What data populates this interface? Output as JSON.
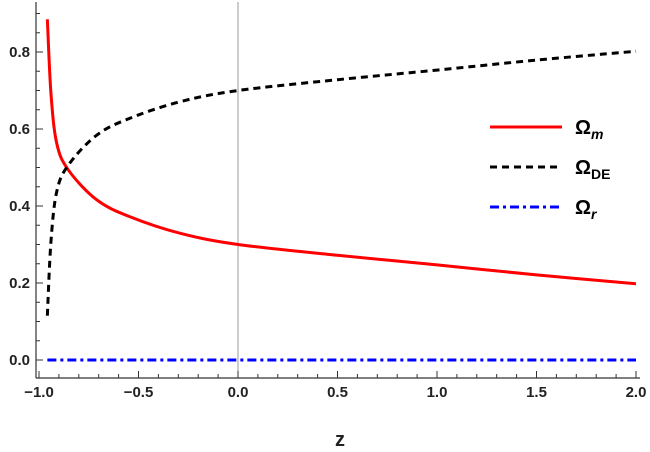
{
  "chart_data": {
    "type": "line",
    "title": "",
    "xlabel": "z",
    "ylabel": "",
    "xlim": [
      -1.0,
      2.0
    ],
    "ylim": [
      0.0,
      0.9
    ],
    "xticks": [
      "−1.0",
      "−0.5",
      "0.0",
      "0.5",
      "1.0",
      "1.5",
      "2.0"
    ],
    "xtick_values": [
      -1.0,
      -0.5,
      0.0,
      0.5,
      1.0,
      1.5,
      2.0
    ],
    "yticks": [
      "0.0",
      "0.2",
      "0.4",
      "0.6",
      "0.8"
    ],
    "ytick_values": [
      0.0,
      0.2,
      0.4,
      0.6,
      0.8
    ],
    "grid": false,
    "vertical_reference_line": 0.0,
    "legend_placement": "right",
    "series": [
      {
        "name": "Ω",
        "sub": "m",
        "sub_italic": true,
        "color": "#ff0000",
        "style": "solid",
        "x": [
          -0.958,
          -0.94,
          -0.911,
          -0.853,
          -0.71,
          -0.543,
          -0.29,
          0.0,
          0.5,
          1.0,
          1.5,
          2.0
        ],
        "y": [
          0.885,
          0.693,
          0.563,
          0.494,
          0.416,
          0.372,
          0.329,
          0.3,
          0.272,
          0.247,
          0.221,
          0.198
        ]
      },
      {
        "name": "Ω",
        "sub": "DE",
        "sub_italic": false,
        "color": "#000000",
        "style": "dashed",
        "x": [
          -0.958,
          -0.94,
          -0.911,
          -0.853,
          -0.71,
          -0.543,
          -0.29,
          0.0,
          0.5,
          1.0,
          1.5,
          2.0
        ],
        "y": [
          0.115,
          0.307,
          0.437,
          0.506,
          0.584,
          0.628,
          0.671,
          0.7,
          0.728,
          0.753,
          0.779,
          0.802
        ]
      },
      {
        "name": "Ω",
        "sub": "r",
        "sub_italic": true,
        "color": "#0000ff",
        "style": "dash-dot",
        "x": [
          -0.958,
          2.0
        ],
        "y": [
          0.0,
          0.0
        ]
      }
    ]
  }
}
